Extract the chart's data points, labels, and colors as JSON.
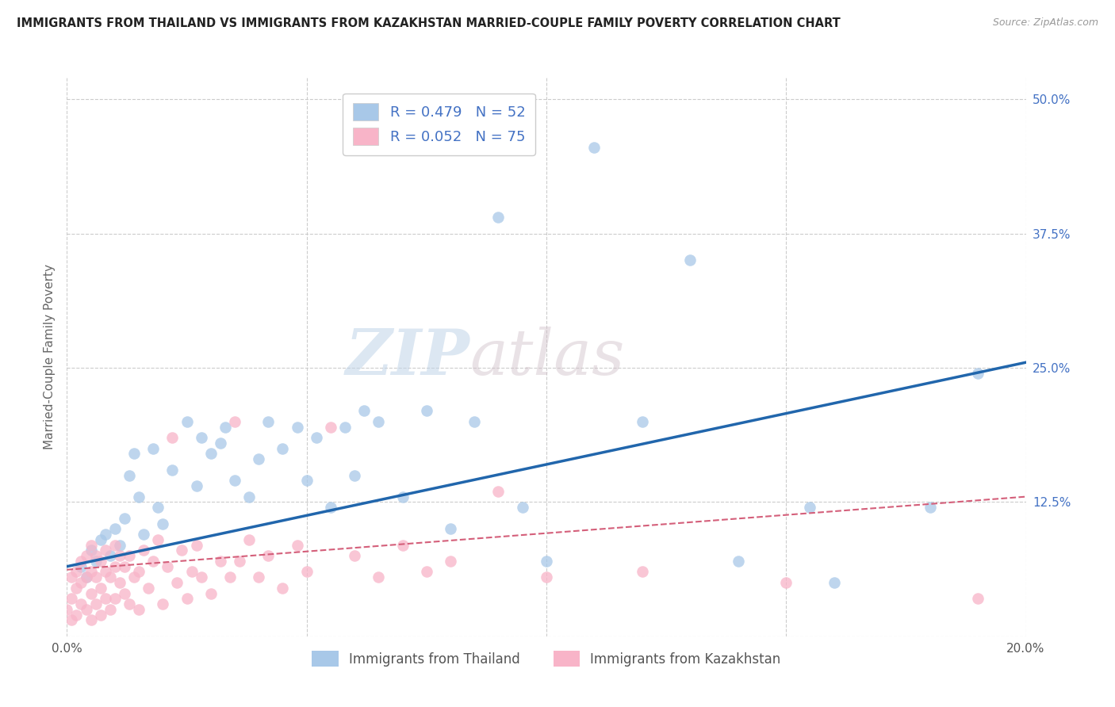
{
  "title": "IMMIGRANTS FROM THAILAND VS IMMIGRANTS FROM KAZAKHSTAN MARRIED-COUPLE FAMILY POVERTY CORRELATION CHART",
  "source": "Source: ZipAtlas.com",
  "ylabel": "Married-Couple Family Poverty",
  "legend_labels": [
    "Immigrants from Thailand",
    "Immigrants from Kazakhstan"
  ],
  "thailand_R": "R = 0.479",
  "thailand_N": "N = 52",
  "kazakhstan_R": "R = 0.052",
  "kazakhstan_N": "N = 75",
  "xlim": [
    0.0,
    0.2
  ],
  "ylim": [
    0.0,
    0.52
  ],
  "color_thailand": "#a8c8e8",
  "color_kazakhstan": "#f8b4c8",
  "line_color_thailand": "#2166ac",
  "line_color_kazakhstan": "#d45f7a",
  "background_color": "#ffffff",
  "watermark_zip": "ZIP",
  "watermark_atlas": "atlas",
  "thai_x": [
    0.003,
    0.004,
    0.005,
    0.006,
    0.007,
    0.008,
    0.009,
    0.01,
    0.011,
    0.012,
    0.013,
    0.014,
    0.015,
    0.016,
    0.018,
    0.019,
    0.02,
    0.022,
    0.025,
    0.027,
    0.028,
    0.03,
    0.032,
    0.033,
    0.035,
    0.038,
    0.04,
    0.042,
    0.045,
    0.048,
    0.05,
    0.052,
    0.055,
    0.058,
    0.06,
    0.062,
    0.065,
    0.07,
    0.075,
    0.08,
    0.085,
    0.09,
    0.095,
    0.1,
    0.11,
    0.12,
    0.13,
    0.14,
    0.155,
    0.16,
    0.18,
    0.19
  ],
  "thai_y": [
    0.065,
    0.055,
    0.08,
    0.07,
    0.09,
    0.095,
    0.075,
    0.1,
    0.085,
    0.11,
    0.15,
    0.17,
    0.13,
    0.095,
    0.175,
    0.12,
    0.105,
    0.155,
    0.2,
    0.14,
    0.185,
    0.17,
    0.18,
    0.195,
    0.145,
    0.13,
    0.165,
    0.2,
    0.175,
    0.195,
    0.145,
    0.185,
    0.12,
    0.195,
    0.15,
    0.21,
    0.2,
    0.13,
    0.21,
    0.1,
    0.2,
    0.39,
    0.12,
    0.07,
    0.455,
    0.2,
    0.35,
    0.07,
    0.12,
    0.05,
    0.12,
    0.245
  ],
  "kaz_x": [
    0.0,
    0.001,
    0.001,
    0.001,
    0.002,
    0.002,
    0.002,
    0.003,
    0.003,
    0.003,
    0.004,
    0.004,
    0.004,
    0.005,
    0.005,
    0.005,
    0.005,
    0.006,
    0.006,
    0.006,
    0.007,
    0.007,
    0.007,
    0.008,
    0.008,
    0.008,
    0.009,
    0.009,
    0.01,
    0.01,
    0.01,
    0.011,
    0.011,
    0.012,
    0.012,
    0.013,
    0.013,
    0.014,
    0.015,
    0.015,
    0.016,
    0.017,
    0.018,
    0.019,
    0.02,
    0.021,
    0.022,
    0.023,
    0.024,
    0.025,
    0.026,
    0.027,
    0.028,
    0.03,
    0.032,
    0.034,
    0.035,
    0.036,
    0.038,
    0.04,
    0.042,
    0.045,
    0.048,
    0.05,
    0.055,
    0.06,
    0.065,
    0.07,
    0.075,
    0.08,
    0.09,
    0.1,
    0.12,
    0.15,
    0.19
  ],
  "kaz_y": [
    0.025,
    0.015,
    0.035,
    0.055,
    0.02,
    0.045,
    0.06,
    0.03,
    0.05,
    0.07,
    0.025,
    0.055,
    0.075,
    0.015,
    0.04,
    0.06,
    0.085,
    0.03,
    0.055,
    0.075,
    0.02,
    0.045,
    0.07,
    0.035,
    0.06,
    0.08,
    0.025,
    0.055,
    0.035,
    0.065,
    0.085,
    0.05,
    0.075,
    0.04,
    0.065,
    0.03,
    0.075,
    0.055,
    0.025,
    0.06,
    0.08,
    0.045,
    0.07,
    0.09,
    0.03,
    0.065,
    0.185,
    0.05,
    0.08,
    0.035,
    0.06,
    0.085,
    0.055,
    0.04,
    0.07,
    0.055,
    0.2,
    0.07,
    0.09,
    0.055,
    0.075,
    0.045,
    0.085,
    0.06,
    0.195,
    0.075,
    0.055,
    0.085,
    0.06,
    0.07,
    0.135,
    0.055,
    0.06,
    0.05,
    0.035
  ]
}
